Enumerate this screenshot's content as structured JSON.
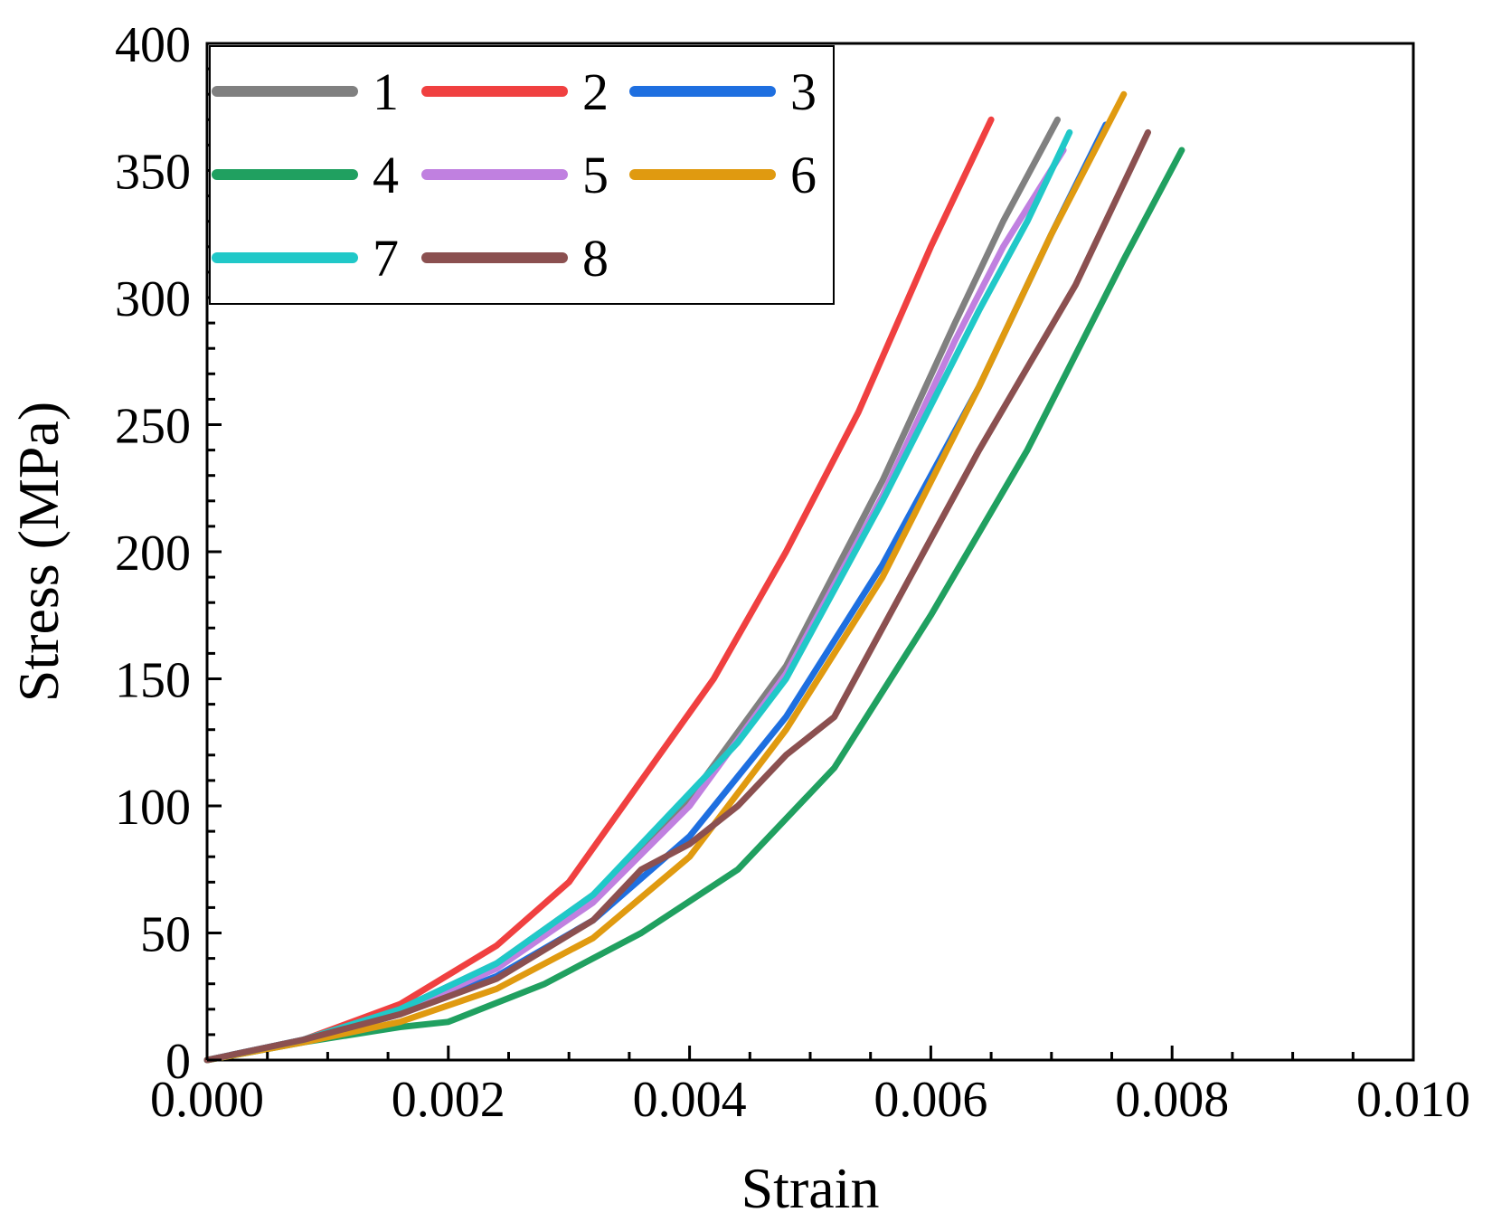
{
  "chart_data": {
    "type": "line",
    "title": "",
    "xlabel": "Strain",
    "ylabel": "Stress (MPa)",
    "xlim": [
      0,
      0.01
    ],
    "ylim": [
      0,
      400
    ],
    "grid": false,
    "legend_position": "top-left",
    "x_ticks": [
      "0.000",
      "0.002",
      "0.004",
      "0.006",
      "0.008",
      "0.010"
    ],
    "x_tick_values": [
      0,
      0.002,
      0.004,
      0.006,
      0.008,
      0.01
    ],
    "y_ticks": [
      "0",
      "50",
      "100",
      "150",
      "200",
      "250",
      "300",
      "350",
      "400"
    ],
    "y_tick_values": [
      0,
      50,
      100,
      150,
      200,
      250,
      300,
      350,
      400
    ],
    "series": [
      {
        "name": "1",
        "color": "#808080",
        "x": [
          0,
          0.0008,
          0.0016,
          0.0024,
          0.0032,
          0.004,
          0.0048,
          0.0056,
          0.0062,
          0.0066,
          0.00705
        ],
        "y": [
          0,
          8,
          20,
          38,
          65,
          103,
          155,
          228,
          290,
          330,
          370
        ]
      },
      {
        "name": "2",
        "color": "#f04040",
        "x": [
          0,
          0.0008,
          0.0016,
          0.0024,
          0.003,
          0.0036,
          0.0042,
          0.0048,
          0.0054,
          0.006,
          0.0065
        ],
        "y": [
          0,
          8,
          22,
          45,
          70,
          110,
          150,
          200,
          255,
          320,
          370
        ]
      },
      {
        "name": "3",
        "color": "#1e6fe0",
        "x": [
          0,
          0.0008,
          0.0016,
          0.0024,
          0.0032,
          0.004,
          0.0048,
          0.0056,
          0.0064,
          0.007,
          0.00745
        ],
        "y": [
          0,
          8,
          18,
          33,
          55,
          88,
          135,
          195,
          265,
          325,
          368
        ]
      },
      {
        "name": "4",
        "color": "#20a060",
        "x": [
          0,
          0.0008,
          0.0016,
          0.002,
          0.0028,
          0.0036,
          0.0044,
          0.0052,
          0.006,
          0.0068,
          0.0076,
          0.00808
        ],
        "y": [
          0,
          7,
          13,
          15,
          30,
          50,
          75,
          115,
          175,
          240,
          315,
          358
        ]
      },
      {
        "name": "5",
        "color": "#c080e0",
        "x": [
          0,
          0.0008,
          0.0016,
          0.0024,
          0.0032,
          0.004,
          0.0048,
          0.0056,
          0.0062,
          0.0066,
          0.0071
        ],
        "y": [
          0,
          8,
          19,
          36,
          62,
          100,
          152,
          222,
          283,
          320,
          358
        ]
      },
      {
        "name": "6",
        "color": "#e09a10",
        "x": [
          0,
          0.0008,
          0.0016,
          0.0024,
          0.0032,
          0.004,
          0.0048,
          0.0056,
          0.0064,
          0.007,
          0.0076
        ],
        "y": [
          0,
          7,
          15,
          28,
          48,
          80,
          130,
          190,
          265,
          325,
          380
        ]
      },
      {
        "name": "7",
        "color": "#20c8c8",
        "x": [
          0,
          0.0008,
          0.0016,
          0.0024,
          0.0032,
          0.004,
          0.0044,
          0.0048,
          0.0056,
          0.0064,
          0.0068,
          0.00715
        ],
        "y": [
          0,
          8,
          20,
          38,
          65,
          105,
          125,
          150,
          220,
          295,
          330,
          365
        ]
      },
      {
        "name": "8",
        "color": "#8b5050",
        "x": [
          0,
          0.0008,
          0.0016,
          0.0024,
          0.0032,
          0.0036,
          0.004,
          0.0044,
          0.0048,
          0.0052,
          0.0056,
          0.0064,
          0.0072,
          0.0078
        ],
        "y": [
          0,
          8,
          18,
          32,
          55,
          75,
          85,
          100,
          120,
          135,
          170,
          240,
          305,
          365
        ]
      }
    ]
  }
}
